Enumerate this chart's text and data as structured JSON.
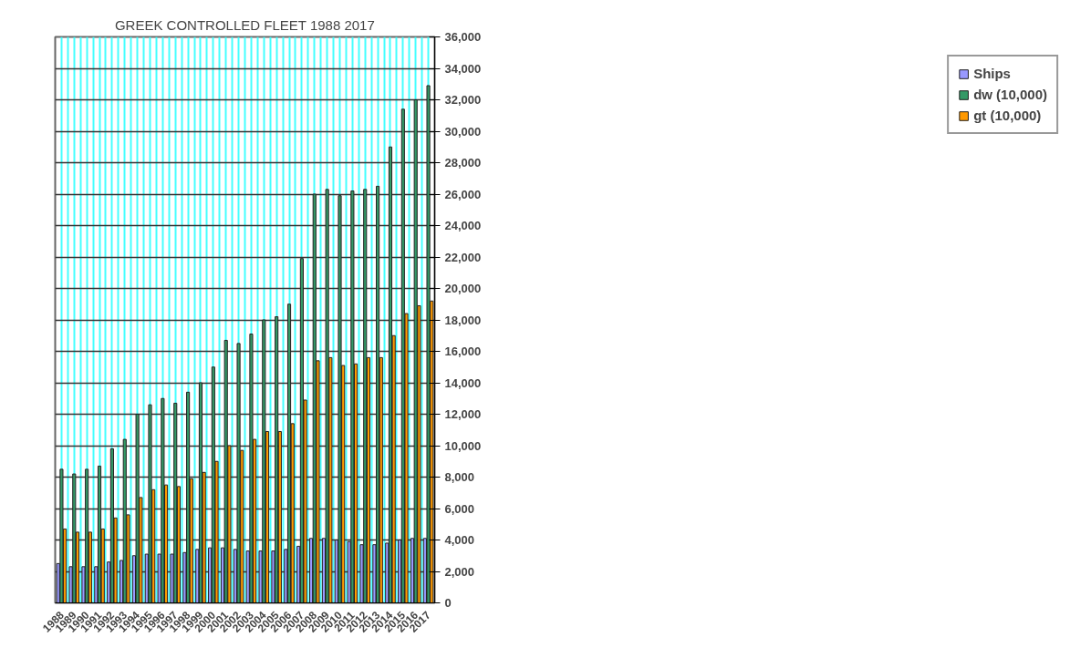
{
  "chart_data": {
    "type": "bar",
    "title": "GREEK CONTROLLED FLEET 1988 2017",
    "categories": [
      "1988",
      "1989",
      "1990",
      "1991",
      "1992",
      "1993",
      "1994",
      "1995",
      "1996",
      "1997",
      "1998",
      "1999",
      "2000",
      "2001",
      "2002",
      "2003",
      "2004",
      "2005",
      "2006",
      "2007",
      "2008",
      "2009",
      "2010",
      "2011",
      "2012",
      "2013",
      "2014",
      "2015",
      "2016",
      "2017"
    ],
    "series": [
      {
        "name": "Ships",
        "color": "#9999ff",
        "values": [
          2500,
          2300,
          2300,
          2300,
          2600,
          2700,
          3000,
          3100,
          3100,
          3100,
          3200,
          3400,
          3500,
          3500,
          3400,
          3300,
          3300,
          3300,
          3400,
          3600,
          4100,
          4100,
          4000,
          3900,
          3700,
          3700,
          3800,
          4000,
          4100,
          4100
        ]
      },
      {
        "name": "dw (10,000)",
        "color": "#339966",
        "values": [
          8500,
          8200,
          8500,
          8700,
          9800,
          10400,
          12000,
          12600,
          13000,
          12700,
          13400,
          14000,
          15000,
          16700,
          16500,
          17100,
          18000,
          18200,
          19000,
          21900,
          26000,
          26300,
          25900,
          26200,
          26300,
          26500,
          29000,
          31400,
          32000,
          32900
        ]
      },
      {
        "name": "gt (10,000)",
        "color": "#ff9900",
        "values": [
          4700,
          4500,
          4500,
          4700,
          5400,
          5600,
          6700,
          7200,
          7500,
          7400,
          7900,
          8300,
          9000,
          10000,
          9700,
          10400,
          10900,
          10900,
          11400,
          12900,
          15400,
          15600,
          15100,
          15200,
          15600,
          15600,
          17000,
          18400,
          18900,
          19200
        ]
      }
    ],
    "ylim": [
      0,
      36000
    ],
    "yticks": [
      {
        "value": 0,
        "label": "0"
      },
      {
        "value": 2000,
        "label": "2,000"
      },
      {
        "value": 4000,
        "label": "4,000"
      },
      {
        "value": 6000,
        "label": "6,000"
      },
      {
        "value": 8000,
        "label": "8,000"
      },
      {
        "value": 10000,
        "label": "10,000"
      },
      {
        "value": 12000,
        "label": "12,000"
      },
      {
        "value": 14000,
        "label": "14,000"
      },
      {
        "value": 16000,
        "label": "16,000"
      },
      {
        "value": 18000,
        "label": "18,000"
      },
      {
        "value": 20000,
        "label": "20,000"
      },
      {
        "value": 22000,
        "label": "22,000"
      },
      {
        "value": 24000,
        "label": "24,000"
      },
      {
        "value": 26000,
        "label": "26,000"
      },
      {
        "value": 28000,
        "label": "28,000"
      },
      {
        "value": 30000,
        "label": "30,000"
      },
      {
        "value": 32000,
        "label": "32,000"
      },
      {
        "value": 34000,
        "label": "34,000"
      },
      {
        "value": 36000,
        "label": "36,000"
      }
    ],
    "grid": true,
    "legend": "right"
  }
}
